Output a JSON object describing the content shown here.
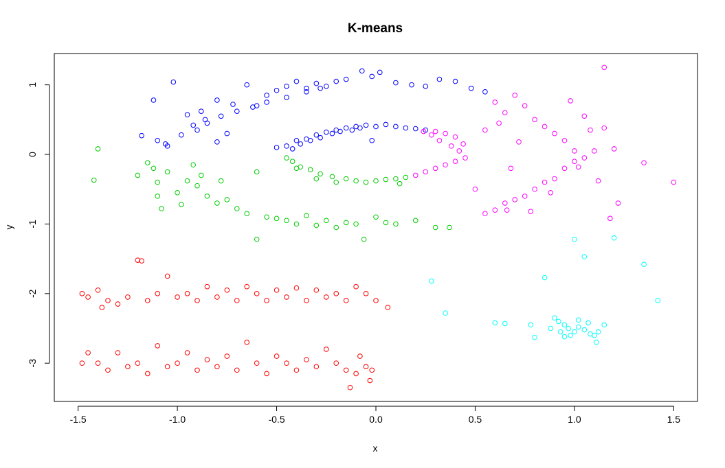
{
  "chart_data": {
    "type": "scatter",
    "title": "K-means",
    "xlabel": "x",
    "ylabel": "y",
    "xlim": [
      -1.62,
      1.62
    ],
    "ylim": [
      -3.55,
      1.45
    ],
    "x_ticks": [
      -1.5,
      -1.0,
      -0.5,
      0.0,
      0.5,
      1.0,
      1.5
    ],
    "x_tick_labels": [
      "-1.5",
      "-1.0",
      "-0.5",
      "0.0",
      "0.5",
      "1.0",
      "1.5"
    ],
    "y_ticks": [
      -3,
      -2,
      -1,
      0,
      1
    ],
    "y_tick_labels": [
      "-3",
      "-2",
      "-1",
      "0",
      "1"
    ],
    "grid": false,
    "legend": "none",
    "marker": "open-circle",
    "series": [
      {
        "color": "#0000ff",
        "points": [
          [
            -1.12,
            0.78
          ],
          [
            -1.02,
            1.04
          ],
          [
            -0.95,
            0.57
          ],
          [
            -0.88,
            0.62
          ],
          [
            -0.8,
            0.78
          ],
          [
            -0.72,
            0.72
          ],
          [
            -0.65,
            1.0
          ],
          [
            -0.6,
            0.7
          ],
          [
            -0.55,
            0.85
          ],
          [
            -0.5,
            0.92
          ],
          [
            -0.45,
            0.98
          ],
          [
            -0.4,
            1.05
          ],
          [
            -0.35,
            0.95
          ],
          [
            -0.3,
            1.02
          ],
          [
            -0.25,
            0.98
          ],
          [
            -0.2,
            1.05
          ],
          [
            -0.15,
            1.08
          ],
          [
            -0.07,
            1.2
          ],
          [
            -0.02,
            1.12
          ],
          [
            0.02,
            1.18
          ],
          [
            0.1,
            1.03
          ],
          [
            0.18,
            1.0
          ],
          [
            0.25,
            0.98
          ],
          [
            0.32,
            1.08
          ],
          [
            0.4,
            1.05
          ],
          [
            0.48,
            0.95
          ],
          [
            0.55,
            0.9
          ],
          [
            -1.18,
            0.27
          ],
          [
            -1.1,
            0.2
          ],
          [
            -1.05,
            0.12
          ],
          [
            -0.98,
            0.28
          ],
          [
            -0.92,
            0.42
          ],
          [
            -0.86,
            0.5
          ],
          [
            -0.78,
            0.55
          ],
          [
            -0.7,
            0.62
          ],
          [
            -0.62,
            0.68
          ],
          [
            -0.55,
            0.75
          ],
          [
            -0.45,
            0.82
          ],
          [
            -0.35,
            0.9
          ],
          [
            -0.28,
            0.95
          ],
          [
            -0.8,
            0.18
          ],
          [
            -0.75,
            0.3
          ],
          [
            -0.5,
            0.1
          ],
          [
            -0.45,
            0.12
          ],
          [
            -0.4,
            0.2
          ],
          [
            -0.35,
            0.22
          ],
          [
            -0.3,
            0.28
          ],
          [
            -0.25,
            0.32
          ],
          [
            -0.2,
            0.35
          ],
          [
            -0.15,
            0.38
          ],
          [
            -0.1,
            0.4
          ],
          [
            -0.05,
            0.42
          ],
          [
            0.0,
            0.4
          ],
          [
            0.05,
            0.43
          ],
          [
            0.1,
            0.4
          ],
          [
            0.15,
            0.38
          ],
          [
            0.2,
            0.37
          ],
          [
            -0.42,
            0.08
          ],
          [
            -0.38,
            0.15
          ],
          [
            -0.33,
            0.2
          ],
          [
            -0.28,
            0.24
          ],
          [
            -0.22,
            0.3
          ],
          [
            -0.12,
            0.35
          ],
          [
            -0.08,
            0.38
          ],
          [
            -0.18,
            0.33
          ],
          [
            0.25,
            0.35
          ],
          [
            -0.02,
            0.2
          ],
          [
            -0.9,
            0.35
          ],
          [
            -0.85,
            0.45
          ],
          [
            -1.06,
            0.15
          ]
        ]
      },
      {
        "color": "#00cd00",
        "points": [
          [
            -1.4,
            0.08
          ],
          [
            -1.42,
            -0.37
          ],
          [
            -1.2,
            -0.3
          ],
          [
            -1.15,
            -0.12
          ],
          [
            -1.1,
            -0.4
          ],
          [
            -1.05,
            -0.25
          ],
          [
            -1.0,
            -0.55
          ],
          [
            -0.95,
            -0.38
          ],
          [
            -0.9,
            -0.45
          ],
          [
            -0.85,
            -0.6
          ],
          [
            -0.8,
            -0.7
          ],
          [
            -0.75,
            -0.65
          ],
          [
            -0.7,
            -0.78
          ],
          [
            -0.65,
            -0.85
          ],
          [
            -0.6,
            -1.22
          ],
          [
            -0.55,
            -0.9
          ],
          [
            -0.5,
            -0.92
          ],
          [
            -0.45,
            -0.95
          ],
          [
            -0.4,
            -1.0
          ],
          [
            -0.35,
            -0.88
          ],
          [
            -0.3,
            -1.02
          ],
          [
            -0.25,
            -0.95
          ],
          [
            -0.2,
            -1.05
          ],
          [
            -0.15,
            -0.98
          ],
          [
            -0.1,
            -1.0
          ],
          [
            -0.06,
            -1.22
          ],
          [
            0.0,
            -0.9
          ],
          [
            0.05,
            -0.98
          ],
          [
            0.1,
            -1.0
          ],
          [
            0.2,
            -0.95
          ],
          [
            0.3,
            -1.05
          ],
          [
            0.37,
            -1.05
          ],
          [
            -1.08,
            -0.78
          ],
          [
            -0.98,
            -0.72
          ],
          [
            -0.92,
            -0.15
          ],
          [
            -0.88,
            -0.3
          ],
          [
            -1.12,
            -0.2
          ],
          [
            -0.45,
            -0.05
          ],
          [
            -0.42,
            -0.1
          ],
          [
            -0.38,
            -0.18
          ],
          [
            -0.33,
            -0.22
          ],
          [
            -0.28,
            -0.28
          ],
          [
            -0.22,
            -0.32
          ],
          [
            -0.15,
            -0.35
          ],
          [
            -0.1,
            -0.38
          ],
          [
            -0.05,
            -0.4
          ],
          [
            0.0,
            -0.38
          ],
          [
            0.05,
            -0.36
          ],
          [
            0.1,
            -0.35
          ],
          [
            0.15,
            -0.33
          ],
          [
            -0.4,
            -0.2
          ],
          [
            -0.3,
            -0.35
          ],
          [
            -0.2,
            -0.4
          ],
          [
            0.12,
            -0.42
          ],
          [
            -0.6,
            -0.25
          ],
          [
            -1.1,
            -0.6
          ],
          [
            -0.78,
            -0.38
          ]
        ]
      },
      {
        "color": "#ff00ff",
        "points": [
          [
            0.2,
            -0.3
          ],
          [
            0.25,
            -0.25
          ],
          [
            0.3,
            -0.2
          ],
          [
            0.35,
            -0.15
          ],
          [
            0.4,
            -0.1
          ],
          [
            0.45,
            -0.05
          ],
          [
            0.42,
            0.05
          ],
          [
            0.38,
            0.12
          ],
          [
            0.32,
            0.2
          ],
          [
            0.28,
            0.28
          ],
          [
            0.24,
            0.33
          ],
          [
            0.3,
            0.33
          ],
          [
            0.35,
            0.3
          ],
          [
            0.4,
            0.25
          ],
          [
            0.44,
            0.15
          ],
          [
            0.5,
            -0.5
          ],
          [
            0.55,
            -0.85
          ],
          [
            0.6,
            -0.8
          ],
          [
            0.65,
            -0.7
          ],
          [
            0.7,
            -0.65
          ],
          [
            0.75,
            -0.6
          ],
          [
            0.8,
            -0.5
          ],
          [
            0.85,
            -0.4
          ],
          [
            0.9,
            -0.35
          ],
          [
            0.95,
            -0.2
          ],
          [
            1.0,
            -0.1
          ],
          [
            1.05,
            -0.05
          ],
          [
            1.1,
            0.05
          ],
          [
            1.15,
            0.38
          ],
          [
            1.12,
            -0.38
          ],
          [
            1.18,
            -0.92
          ],
          [
            1.22,
            -0.7
          ],
          [
            1.35,
            -0.12
          ],
          [
            1.5,
            -0.4
          ],
          [
            1.15,
            1.25
          ],
          [
            0.6,
            0.75
          ],
          [
            0.65,
            0.6
          ],
          [
            0.7,
            0.85
          ],
          [
            0.75,
            0.7
          ],
          [
            0.8,
            0.5
          ],
          [
            0.85,
            0.4
          ],
          [
            0.9,
            0.3
          ],
          [
            0.95,
            0.2
          ],
          [
            1.0,
            0.05
          ],
          [
            1.05,
            0.55
          ],
          [
            1.08,
            0.35
          ],
          [
            1.2,
            0.08
          ],
          [
            0.55,
            0.35
          ],
          [
            0.72,
            0.18
          ],
          [
            0.68,
            -0.2
          ],
          [
            0.62,
            0.45
          ],
          [
            0.98,
            0.77
          ],
          [
            1.02,
            -0.18
          ],
          [
            0.88,
            -0.55
          ],
          [
            0.78,
            -0.82
          ],
          [
            0.66,
            -0.8
          ]
        ]
      },
      {
        "color": "#ff0000",
        "points": [
          [
            -1.48,
            -2.0
          ],
          [
            -1.45,
            -2.05
          ],
          [
            -1.4,
            -1.95
          ],
          [
            -1.38,
            -2.2
          ],
          [
            -1.35,
            -2.1
          ],
          [
            -1.3,
            -2.15
          ],
          [
            -1.25,
            -2.05
          ],
          [
            -1.2,
            -1.52
          ],
          [
            -1.18,
            -1.53
          ],
          [
            -1.15,
            -2.1
          ],
          [
            -1.1,
            -2.0
          ],
          [
            -1.05,
            -1.75
          ],
          [
            -1.0,
            -2.05
          ],
          [
            -0.95,
            -2.0
          ],
          [
            -0.9,
            -2.1
          ],
          [
            -0.85,
            -1.9
          ],
          [
            -0.8,
            -2.05
          ],
          [
            -0.75,
            -1.95
          ],
          [
            -0.7,
            -2.1
          ],
          [
            -0.65,
            -1.9
          ],
          [
            -0.6,
            -2.0
          ],
          [
            -0.55,
            -2.1
          ],
          [
            -0.5,
            -1.95
          ],
          [
            -0.45,
            -2.05
          ],
          [
            -0.4,
            -1.92
          ],
          [
            -0.35,
            -2.1
          ],
          [
            -0.3,
            -1.95
          ],
          [
            -0.25,
            -2.05
          ],
          [
            -0.2,
            -2.0
          ],
          [
            -0.15,
            -2.1
          ],
          [
            -0.1,
            -1.9
          ],
          [
            -0.05,
            -2.0
          ],
          [
            0.0,
            -2.1
          ],
          [
            0.06,
            -2.2
          ],
          [
            -1.48,
            -3.0
          ],
          [
            -1.45,
            -2.85
          ],
          [
            -1.4,
            -3.0
          ],
          [
            -1.35,
            -3.1
          ],
          [
            -1.3,
            -2.85
          ],
          [
            -1.25,
            -3.05
          ],
          [
            -1.2,
            -3.0
          ],
          [
            -1.15,
            -3.15
          ],
          [
            -1.1,
            -2.75
          ],
          [
            -1.05,
            -3.05
          ],
          [
            -1.0,
            -3.0
          ],
          [
            -0.95,
            -2.85
          ],
          [
            -0.9,
            -3.1
          ],
          [
            -0.85,
            -2.95
          ],
          [
            -0.8,
            -3.05
          ],
          [
            -0.75,
            -2.9
          ],
          [
            -0.7,
            -3.1
          ],
          [
            -0.65,
            -2.7
          ],
          [
            -0.6,
            -3.0
          ],
          [
            -0.55,
            -3.15
          ],
          [
            -0.5,
            -2.9
          ],
          [
            -0.45,
            -3.0
          ],
          [
            -0.4,
            -3.1
          ],
          [
            -0.35,
            -2.95
          ],
          [
            -0.3,
            -3.05
          ],
          [
            -0.25,
            -2.8
          ],
          [
            -0.2,
            -3.0
          ],
          [
            -0.15,
            -3.1
          ],
          [
            -0.13,
            -3.35
          ],
          [
            -0.08,
            -2.9
          ],
          [
            -0.05,
            -3.05
          ],
          [
            -0.03,
            -3.25
          ],
          [
            -0.1,
            -3.15
          ],
          [
            -0.02,
            -3.1
          ]
        ]
      },
      {
        "color": "#00ffff",
        "points": [
          [
            0.28,
            -1.82
          ],
          [
            0.35,
            -2.28
          ],
          [
            0.6,
            -2.42
          ],
          [
            0.65,
            -2.43
          ],
          [
            0.78,
            -2.45
          ],
          [
            0.8,
            -2.63
          ],
          [
            0.85,
            -1.77
          ],
          [
            0.88,
            -2.5
          ],
          [
            0.9,
            -2.35
          ],
          [
            0.92,
            -2.4
          ],
          [
            0.95,
            -2.45
          ],
          [
            0.97,
            -2.5
          ],
          [
            1.0,
            -2.55
          ],
          [
            1.02,
            -2.48
          ],
          [
            1.05,
            -2.52
          ],
          [
            1.08,
            -2.58
          ],
          [
            1.1,
            -2.6
          ],
          [
            1.12,
            -2.55
          ],
          [
            1.15,
            -2.45
          ],
          [
            1.0,
            -1.22
          ],
          [
            1.05,
            -1.47
          ],
          [
            1.2,
            -1.2
          ],
          [
            1.35,
            -1.58
          ],
          [
            1.42,
            -2.1
          ],
          [
            0.95,
            -2.62
          ],
          [
            1.02,
            -2.38
          ],
          [
            0.93,
            -2.55
          ],
          [
            0.98,
            -2.6
          ],
          [
            1.07,
            -2.42
          ],
          [
            1.11,
            -2.7
          ]
        ]
      }
    ]
  }
}
